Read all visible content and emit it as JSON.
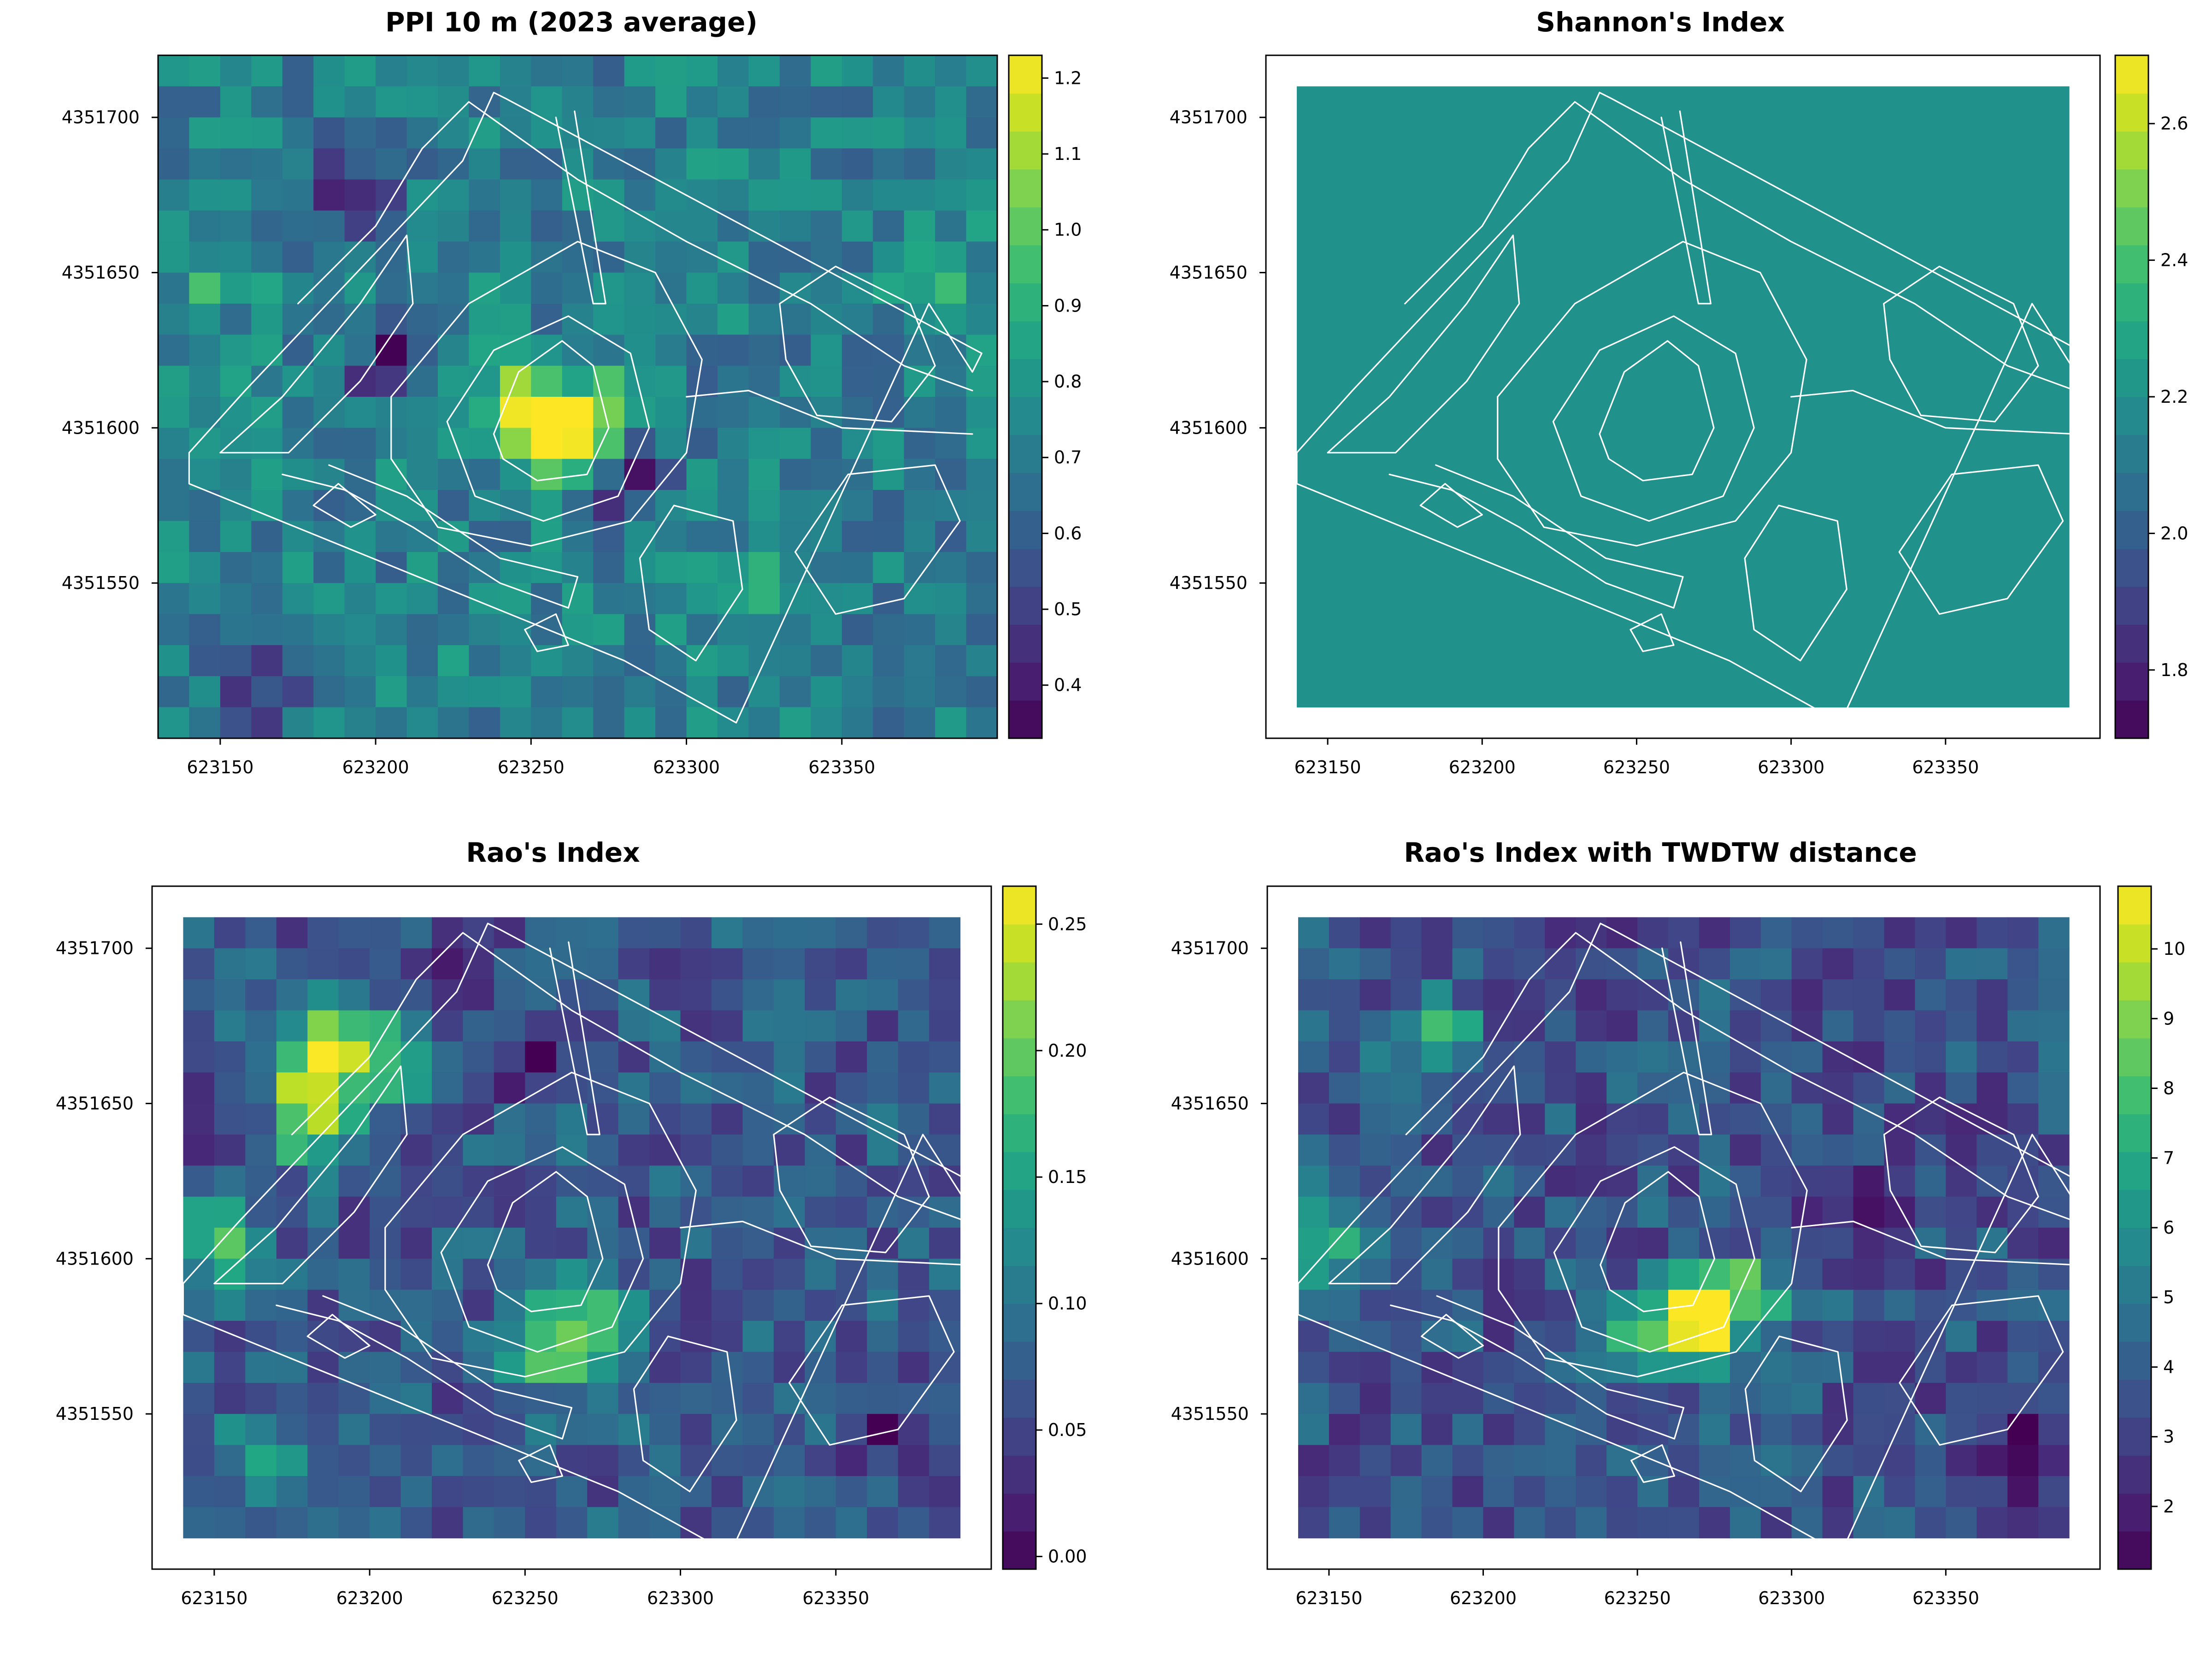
{
  "figure": {
    "layout": "2x2 grid of raster maps with colorbars"
  },
  "colormap": "viridis",
  "chart_data": [
    {
      "type": "heatmap",
      "title": "PPI 10 m (2023 average)",
      "xlabel": "",
      "ylabel": "",
      "xlim": [
        623130,
        623400
      ],
      "ylim": [
        4351500,
        4351720
      ],
      "xticks": [
        623150,
        623200,
        623250,
        623300,
        623350
      ],
      "yticks": [
        4351550,
        4351600,
        4351650,
        4351700
      ],
      "raster_extent": [
        623130,
        623400,
        4351500,
        4351720
      ],
      "grid_rows": 22,
      "grid_cols": 27,
      "value_range": [
        0.33,
        1.23
      ],
      "colorbar_ticks": [
        0.4,
        0.5,
        0.6,
        0.7,
        0.8,
        0.9,
        1.0,
        1.1,
        1.2
      ],
      "hotspots": [
        {
          "x": 623255,
          "y": 4351595,
          "value": 1.22
        },
        {
          "x": 623268,
          "y": 4351602,
          "value": 1.1
        },
        {
          "x": 623245,
          "y": 4351612,
          "value": 0.98
        },
        {
          "x": 623150,
          "y": 4351650,
          "value": 0.9
        },
        {
          "x": 623380,
          "y": 4351650,
          "value": 0.85
        },
        {
          "x": 623320,
          "y": 4351545,
          "value": 0.85
        },
        {
          "x": 623195,
          "y": 4351675,
          "value": 0.35
        },
        {
          "x": 623205,
          "y": 4351620,
          "value": 0.42
        },
        {
          "x": 623165,
          "y": 4351515,
          "value": 0.45
        },
        {
          "x": 623282,
          "y": 4351582,
          "value": 0.45
        }
      ],
      "background_value": 0.72
    },
    {
      "type": "heatmap",
      "title": "Shannon's Index",
      "xlabel": "",
      "ylabel": "",
      "xlim": [
        623130,
        623400
      ],
      "ylim": [
        4351500,
        4351720
      ],
      "xticks": [
        623150,
        623200,
        623250,
        623300,
        623350
      ],
      "yticks": [
        4351550,
        4351600,
        4351650,
        4351700
      ],
      "raster_extent": [
        623140,
        623390,
        4351510,
        4351710
      ],
      "grid_rows": 1,
      "grid_cols": 1,
      "value_range": [
        1.7,
        2.7
      ],
      "colorbar_ticks": [
        1.8,
        2.0,
        2.2,
        2.4,
        2.6
      ],
      "hotspots": [],
      "background_value": 2.2
    },
    {
      "type": "heatmap",
      "title": "Rao's Index",
      "xlabel": "",
      "ylabel": "",
      "xlim": [
        623130,
        623400
      ],
      "ylim": [
        4351500,
        4351720
      ],
      "xticks": [
        623150,
        623200,
        623250,
        623300,
        623350
      ],
      "yticks": [
        4351550,
        4351600,
        4351650,
        4351700
      ],
      "raster_extent": [
        623140,
        623390,
        4351510,
        4351710
      ],
      "grid_rows": 20,
      "grid_cols": 25,
      "value_range": [
        -0.005,
        0.265
      ],
      "colorbar_ticks": [
        0.0,
        0.05,
        0.1,
        0.15,
        0.2,
        0.25
      ],
      "hotspots": [
        {
          "x": 623185,
          "y": 4351665,
          "value": 0.26
        },
        {
          "x": 623180,
          "y": 4351645,
          "value": 0.2
        },
        {
          "x": 623150,
          "y": 4351605,
          "value": 0.19
        },
        {
          "x": 623205,
          "y": 4351665,
          "value": 0.18
        },
        {
          "x": 623270,
          "y": 4351580,
          "value": 0.2
        },
        {
          "x": 623255,
          "y": 4351570,
          "value": 0.17
        },
        {
          "x": 623165,
          "y": 4351535,
          "value": 0.15
        },
        {
          "x": 623230,
          "y": 4351690,
          "value": 0.01
        },
        {
          "x": 623250,
          "y": 4351665,
          "value": 0.02
        },
        {
          "x": 623370,
          "y": 4351545,
          "value": 0.02
        },
        {
          "x": 623150,
          "y": 4351650,
          "value": 0.02
        }
      ],
      "background_value": 0.07
    },
    {
      "type": "heatmap",
      "title": "Rao's Index with TWDTW distance",
      "xlabel": "",
      "ylabel": "",
      "xlim": [
        623130,
        623400
      ],
      "ylim": [
        4351500,
        4351720
      ],
      "xticks": [
        623150,
        623200,
        623250,
        623300,
        623350
      ],
      "yticks": [
        4351550,
        4351600,
        4351650,
        4351700
      ],
      "raster_extent": [
        623140,
        623390,
        4351510,
        4351710
      ],
      "grid_rows": 20,
      "grid_cols": 25,
      "value_range": [
        1.1,
        10.9
      ],
      "colorbar_ticks": [
        2,
        3,
        4,
        5,
        6,
        7,
        8,
        9,
        10
      ],
      "hotspots": [
        {
          "x": 623270,
          "y": 4351580,
          "value": 10.8
        },
        {
          "x": 623285,
          "y": 4351590,
          "value": 8.5
        },
        {
          "x": 623250,
          "y": 4351575,
          "value": 7.5
        },
        {
          "x": 623185,
          "y": 4351670,
          "value": 7.8
        },
        {
          "x": 623150,
          "y": 4351605,
          "value": 7.0
        },
        {
          "x": 623230,
          "y": 4351690,
          "value": 2.0
        },
        {
          "x": 623330,
          "y": 4351620,
          "value": 2.0
        },
        {
          "x": 623380,
          "y": 4351540,
          "value": 1.3
        },
        {
          "x": 623290,
          "y": 4351600,
          "value": 2.2
        }
      ],
      "background_value": 3.6
    }
  ]
}
